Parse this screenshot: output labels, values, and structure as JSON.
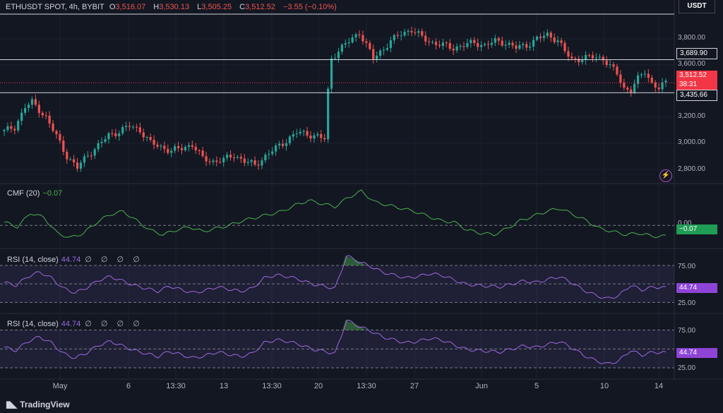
{
  "header": {
    "symbol": "ETHUSDT SPOT, 4h, BYBIT",
    "open_label": "O",
    "open": "3,516.07",
    "high_label": "H",
    "high": "3,530.13",
    "low_label": "L",
    "low": "3,505.25",
    "close_label": "C",
    "close": "3,512.52",
    "change": "−3.55 (−0.10%)"
  },
  "currency": "USDT",
  "price_scale": [
    "3,800.00",
    "3,600.00",
    "3,200.00",
    "3,000.00",
    "2,800.00"
  ],
  "horizontal_lines": [
    "3,689.90",
    "3,435.66"
  ],
  "last_price": {
    "value": "3,512.52",
    "countdown": "38:31"
  },
  "panes": {
    "cmf": {
      "title": "CMF (20)",
      "value": "−0.07",
      "scale": [
        "0.00"
      ],
      "tag": "−0.07"
    },
    "rsi1": {
      "title": "RSI (14, close)",
      "value": "44.74",
      "icons": "∅ ∅ ∅ ∅",
      "scale": [
        "75.00",
        "25.00"
      ],
      "tag": "44.74"
    },
    "rsi2": {
      "title": "RSI (14, close)",
      "value": "44.74",
      "icons": "∅ ∅ ∅ ∅",
      "scale": [
        "75.00",
        "25.00"
      ],
      "tag": "44.74"
    }
  },
  "x_axis": [
    "May",
    "6",
    "13:30",
    "13",
    "13:30",
    "20",
    "13:30",
    "27",
    "Jun",
    "5",
    "10",
    "14"
  ],
  "brand": "TradingView",
  "colors": {
    "up": "#26a69a",
    "down": "#ef5350",
    "indicator": "#4caf50",
    "rsi": "#9c6ade",
    "bg": "#131722"
  },
  "chart_data": [
    {
      "type": "candlestick",
      "title": "ETHUSDT SPOT, 4h, BYBIT",
      "ylabel": "USDT",
      "ylim": [
        2750,
        4050
      ],
      "x_ticks": [
        "May",
        "6",
        "13:30",
        "13",
        "13:30",
        "20",
        "13:30",
        "27",
        "Jun",
        "5",
        "10",
        "14"
      ],
      "close_path": [
        [
          0,
          3140
        ],
        [
          3,
          3170
        ],
        [
          6,
          3330
        ],
        [
          8,
          3360
        ],
        [
          12,
          3250
        ],
        [
          15,
          3100
        ],
        [
          18,
          2950
        ],
        [
          21,
          2860
        ],
        [
          24,
          2960
        ],
        [
          27,
          3030
        ],
        [
          30,
          3110
        ],
        [
          33,
          3140
        ],
        [
          36,
          3180
        ],
        [
          39,
          3150
        ],
        [
          42,
          3050
        ],
        [
          45,
          3020
        ],
        [
          48,
          2990
        ],
        [
          51,
          3010
        ],
        [
          54,
          3040
        ],
        [
          57,
          2930
        ],
        [
          60,
          2910
        ],
        [
          63,
          2920
        ],
        [
          66,
          2960
        ],
        [
          69,
          2910
        ],
        [
          72,
          2880
        ],
        [
          75,
          2950
        ],
        [
          78,
          3010
        ],
        [
          81,
          3070
        ],
        [
          84,
          3130
        ],
        [
          87,
          3120
        ],
        [
          90,
          3100
        ],
        [
          92,
          3080
        ],
        [
          93,
          3450
        ],
        [
          94,
          3700
        ],
        [
          96,
          3760
        ],
        [
          99,
          3830
        ],
        [
          102,
          3900
        ],
        [
          104,
          3800
        ],
        [
          106,
          3700
        ],
        [
          108,
          3750
        ],
        [
          111,
          3830
        ],
        [
          114,
          3890
        ],
        [
          117,
          3920
        ],
        [
          120,
          3860
        ],
        [
          123,
          3820
        ],
        [
          126,
          3800
        ],
        [
          129,
          3780
        ],
        [
          132,
          3800
        ],
        [
          135,
          3820
        ],
        [
          138,
          3800
        ],
        [
          141,
          3830
        ],
        [
          144,
          3820
        ],
        [
          147,
          3780
        ],
        [
          150,
          3800
        ],
        [
          153,
          3850
        ],
        [
          156,
          3880
        ],
        [
          159,
          3840
        ],
        [
          161,
          3750
        ],
        [
          163,
          3690
        ],
        [
          166,
          3700
        ],
        [
          169,
          3710
        ],
        [
          172,
          3700
        ],
        [
          174,
          3640
        ],
        [
          176,
          3580
        ],
        [
          178,
          3470
        ],
        [
          180,
          3460
        ],
        [
          182,
          3540
        ],
        [
          184,
          3600
        ],
        [
          186,
          3510
        ],
        [
          188,
          3470
        ],
        [
          190,
          3510
        ]
      ],
      "horizontal_levels": [
        3689.9,
        3435.66
      ],
      "last": 3512.52
    },
    {
      "type": "line",
      "title": "CMF (20)",
      "series": [
        {
          "name": "CMF (20)",
          "values": [
            0.02,
            -0.01,
            0.08,
            0.05,
            -0.05,
            -0.08,
            -0.05,
            0.02,
            0.07,
            0.09,
            0.03,
            -0.03,
            -0.06,
            -0.03,
            -0.01,
            -0.04,
            -0.02,
            0.0,
            0.03,
            0.05,
            0.07,
            0.09,
            0.13,
            0.16,
            0.14,
            0.12,
            0.18,
            0.22,
            0.15,
            0.13,
            0.11,
            0.09,
            0.06,
            0.03,
            0.02,
            -0.03,
            -0.05,
            -0.06,
            -0.02,
            0.03,
            0.06,
            0.09,
            0.11,
            0.07,
            0.03,
            -0.02,
            -0.04,
            -0.06,
            -0.05,
            -0.07,
            -0.07
          ]
        }
      ],
      "reference_levels": [
        0
      ]
    },
    {
      "type": "line",
      "title": "RSI (14, close)",
      "series": [
        {
          "name": "RSI (14, close)",
          "values": [
            52,
            48,
            60,
            66,
            58,
            44,
            38,
            45,
            55,
            60,
            54,
            48,
            44,
            40,
            47,
            42,
            38,
            41,
            46,
            43,
            40,
            44,
            58,
            62,
            60,
            56,
            50,
            47,
            44,
            88,
            80,
            74,
            66,
            62,
            58,
            60,
            64,
            62,
            56,
            50,
            48,
            47,
            46,
            50,
            54,
            52,
            56,
            60,
            52,
            42,
            35,
            30,
            34,
            48,
            42,
            46,
            44.74
          ]
        }
      ],
      "reference_levels": [
        75,
        50,
        25
      ]
    },
    {
      "type": "line",
      "title": "RSI (14, close)",
      "series": [
        {
          "name": "RSI (14, close)",
          "values": [
            52,
            48,
            60,
            66,
            58,
            44,
            38,
            45,
            55,
            60,
            54,
            48,
            44,
            40,
            47,
            42,
            38,
            41,
            46,
            43,
            40,
            44,
            58,
            62,
            60,
            56,
            50,
            47,
            44,
            88,
            80,
            74,
            66,
            62,
            58,
            60,
            64,
            62,
            56,
            50,
            48,
            47,
            46,
            50,
            54,
            52,
            56,
            60,
            52,
            42,
            35,
            30,
            34,
            48,
            42,
            46,
            44.74
          ]
        }
      ],
      "reference_levels": [
        75,
        50,
        25
      ]
    }
  ]
}
